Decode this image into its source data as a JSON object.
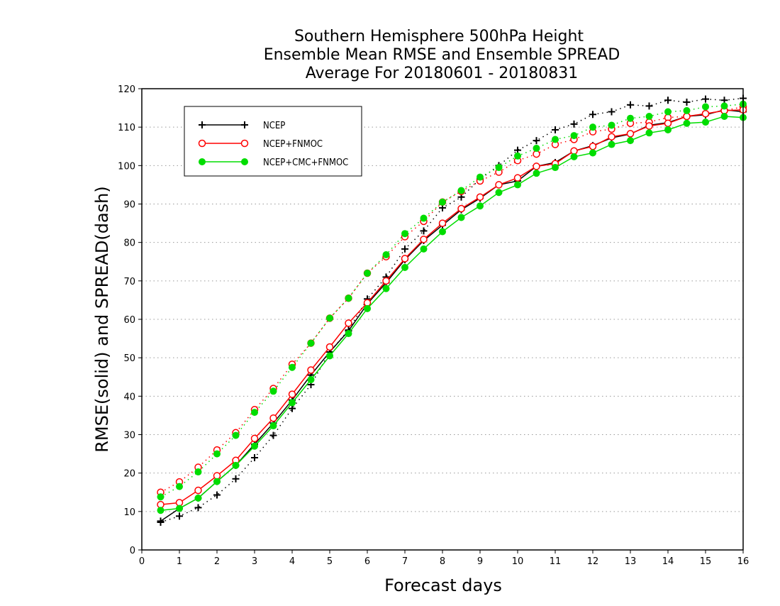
{
  "chart_data": {
    "type": "line",
    "title": [
      "Southern Hemisphere 500hPa Height",
      "Ensemble Mean RMSE and Ensemble SPREAD",
      "Average For 20180601 - 20180831"
    ],
    "xlabel": "Forecast days",
    "ylabel": "RMSE(solid) and SPREAD(dash)",
    "xlim": [
      0,
      16
    ],
    "ylim": [
      0,
      120
    ],
    "xticks": [
      0,
      1,
      2,
      3,
      4,
      5,
      6,
      7,
      8,
      9,
      10,
      11,
      12,
      13,
      14,
      15,
      16
    ],
    "yticks": [
      0,
      10,
      20,
      30,
      40,
      50,
      60,
      70,
      80,
      90,
      100,
      110,
      120
    ],
    "grid": "horizontal dotted",
    "legend_position": "top-left",
    "x": [
      0.5,
      1,
      1.5,
      2,
      2.5,
      3,
      3.5,
      4,
      4.5,
      5,
      5.5,
      6,
      6.5,
      7,
      7.5,
      8,
      8.5,
      9,
      9.5,
      10,
      10.5,
      11,
      11.5,
      12,
      12.5,
      13,
      13.5,
      14,
      14.5,
      15,
      15.5,
      16
    ],
    "series": [
      {
        "name": "NCEP",
        "color": "#000000",
        "marker": "plus",
        "rmse": [
          7.5,
          10.8,
          13.5,
          17.8,
          22.0,
          27.5,
          33.0,
          39.0,
          45.5,
          51.5,
          57.0,
          64.0,
          69.5,
          75.5,
          80.5,
          84.5,
          88.5,
          91.5,
          95.0,
          96.0,
          99.8,
          100.8,
          103.8,
          105.2,
          107.2,
          108.2,
          110.5,
          111.2,
          112.8,
          113.2,
          114.5,
          114.0
        ],
        "spread": [
          7.2,
          8.8,
          11.0,
          14.3,
          18.5,
          24.0,
          29.8,
          36.8,
          43.0,
          51.5,
          57.2,
          65.3,
          71.0,
          78.3,
          83.0,
          89.0,
          91.8,
          96.5,
          100.0,
          104.0,
          106.5,
          109.3,
          110.8,
          113.3,
          114.0,
          115.8,
          115.5,
          117.0,
          116.5,
          117.3,
          117.0,
          117.5
        ]
      },
      {
        "name": "NCEP+FNMOC",
        "color": "#ff0000",
        "marker": "open-circle",
        "rmse": [
          11.8,
          12.3,
          15.5,
          19.3,
          23.3,
          29.0,
          34.3,
          40.5,
          46.8,
          52.8,
          59.0,
          64.3,
          70.0,
          75.8,
          80.8,
          85.0,
          88.8,
          91.8,
          95.0,
          96.8,
          99.8,
          100.5,
          103.8,
          105.0,
          107.5,
          108.3,
          110.3,
          111.0,
          112.8,
          113.5,
          114.3,
          114.5
        ],
        "spread": [
          15.0,
          17.7,
          21.5,
          26.0,
          30.5,
          36.5,
          42.0,
          48.3,
          53.8,
          60.3,
          65.5,
          72.0,
          76.3,
          81.5,
          85.5,
          90.5,
          93.3,
          96.0,
          98.3,
          101.3,
          103.0,
          105.5,
          106.8,
          108.8,
          109.5,
          111.0,
          111.3,
          112.5,
          112.8,
          113.5,
          114.3,
          115.3
        ]
      },
      {
        "name": "NCEP+CMC+FNMOC",
        "color": "#00dd00",
        "marker": "filled-circle",
        "rmse": [
          10.3,
          10.8,
          13.5,
          17.8,
          22.0,
          27.0,
          32.3,
          38.3,
          44.3,
          50.5,
          56.3,
          62.8,
          68.0,
          73.5,
          78.3,
          82.8,
          86.5,
          89.5,
          93.0,
          95.0,
          98.0,
          99.5,
          102.3,
          103.3,
          105.5,
          106.5,
          108.5,
          109.3,
          111.0,
          111.3,
          112.8,
          112.5
        ],
        "spread": [
          13.8,
          16.5,
          20.3,
          25.0,
          29.8,
          35.8,
          41.3,
          47.5,
          53.8,
          60.3,
          65.5,
          72.0,
          76.8,
          82.3,
          86.3,
          90.5,
          93.5,
          97.0,
          99.5,
          102.5,
          104.5,
          106.8,
          107.8,
          110.0,
          110.5,
          112.3,
          112.8,
          114.0,
          114.3,
          115.3,
          115.5,
          116.0
        ]
      }
    ]
  }
}
